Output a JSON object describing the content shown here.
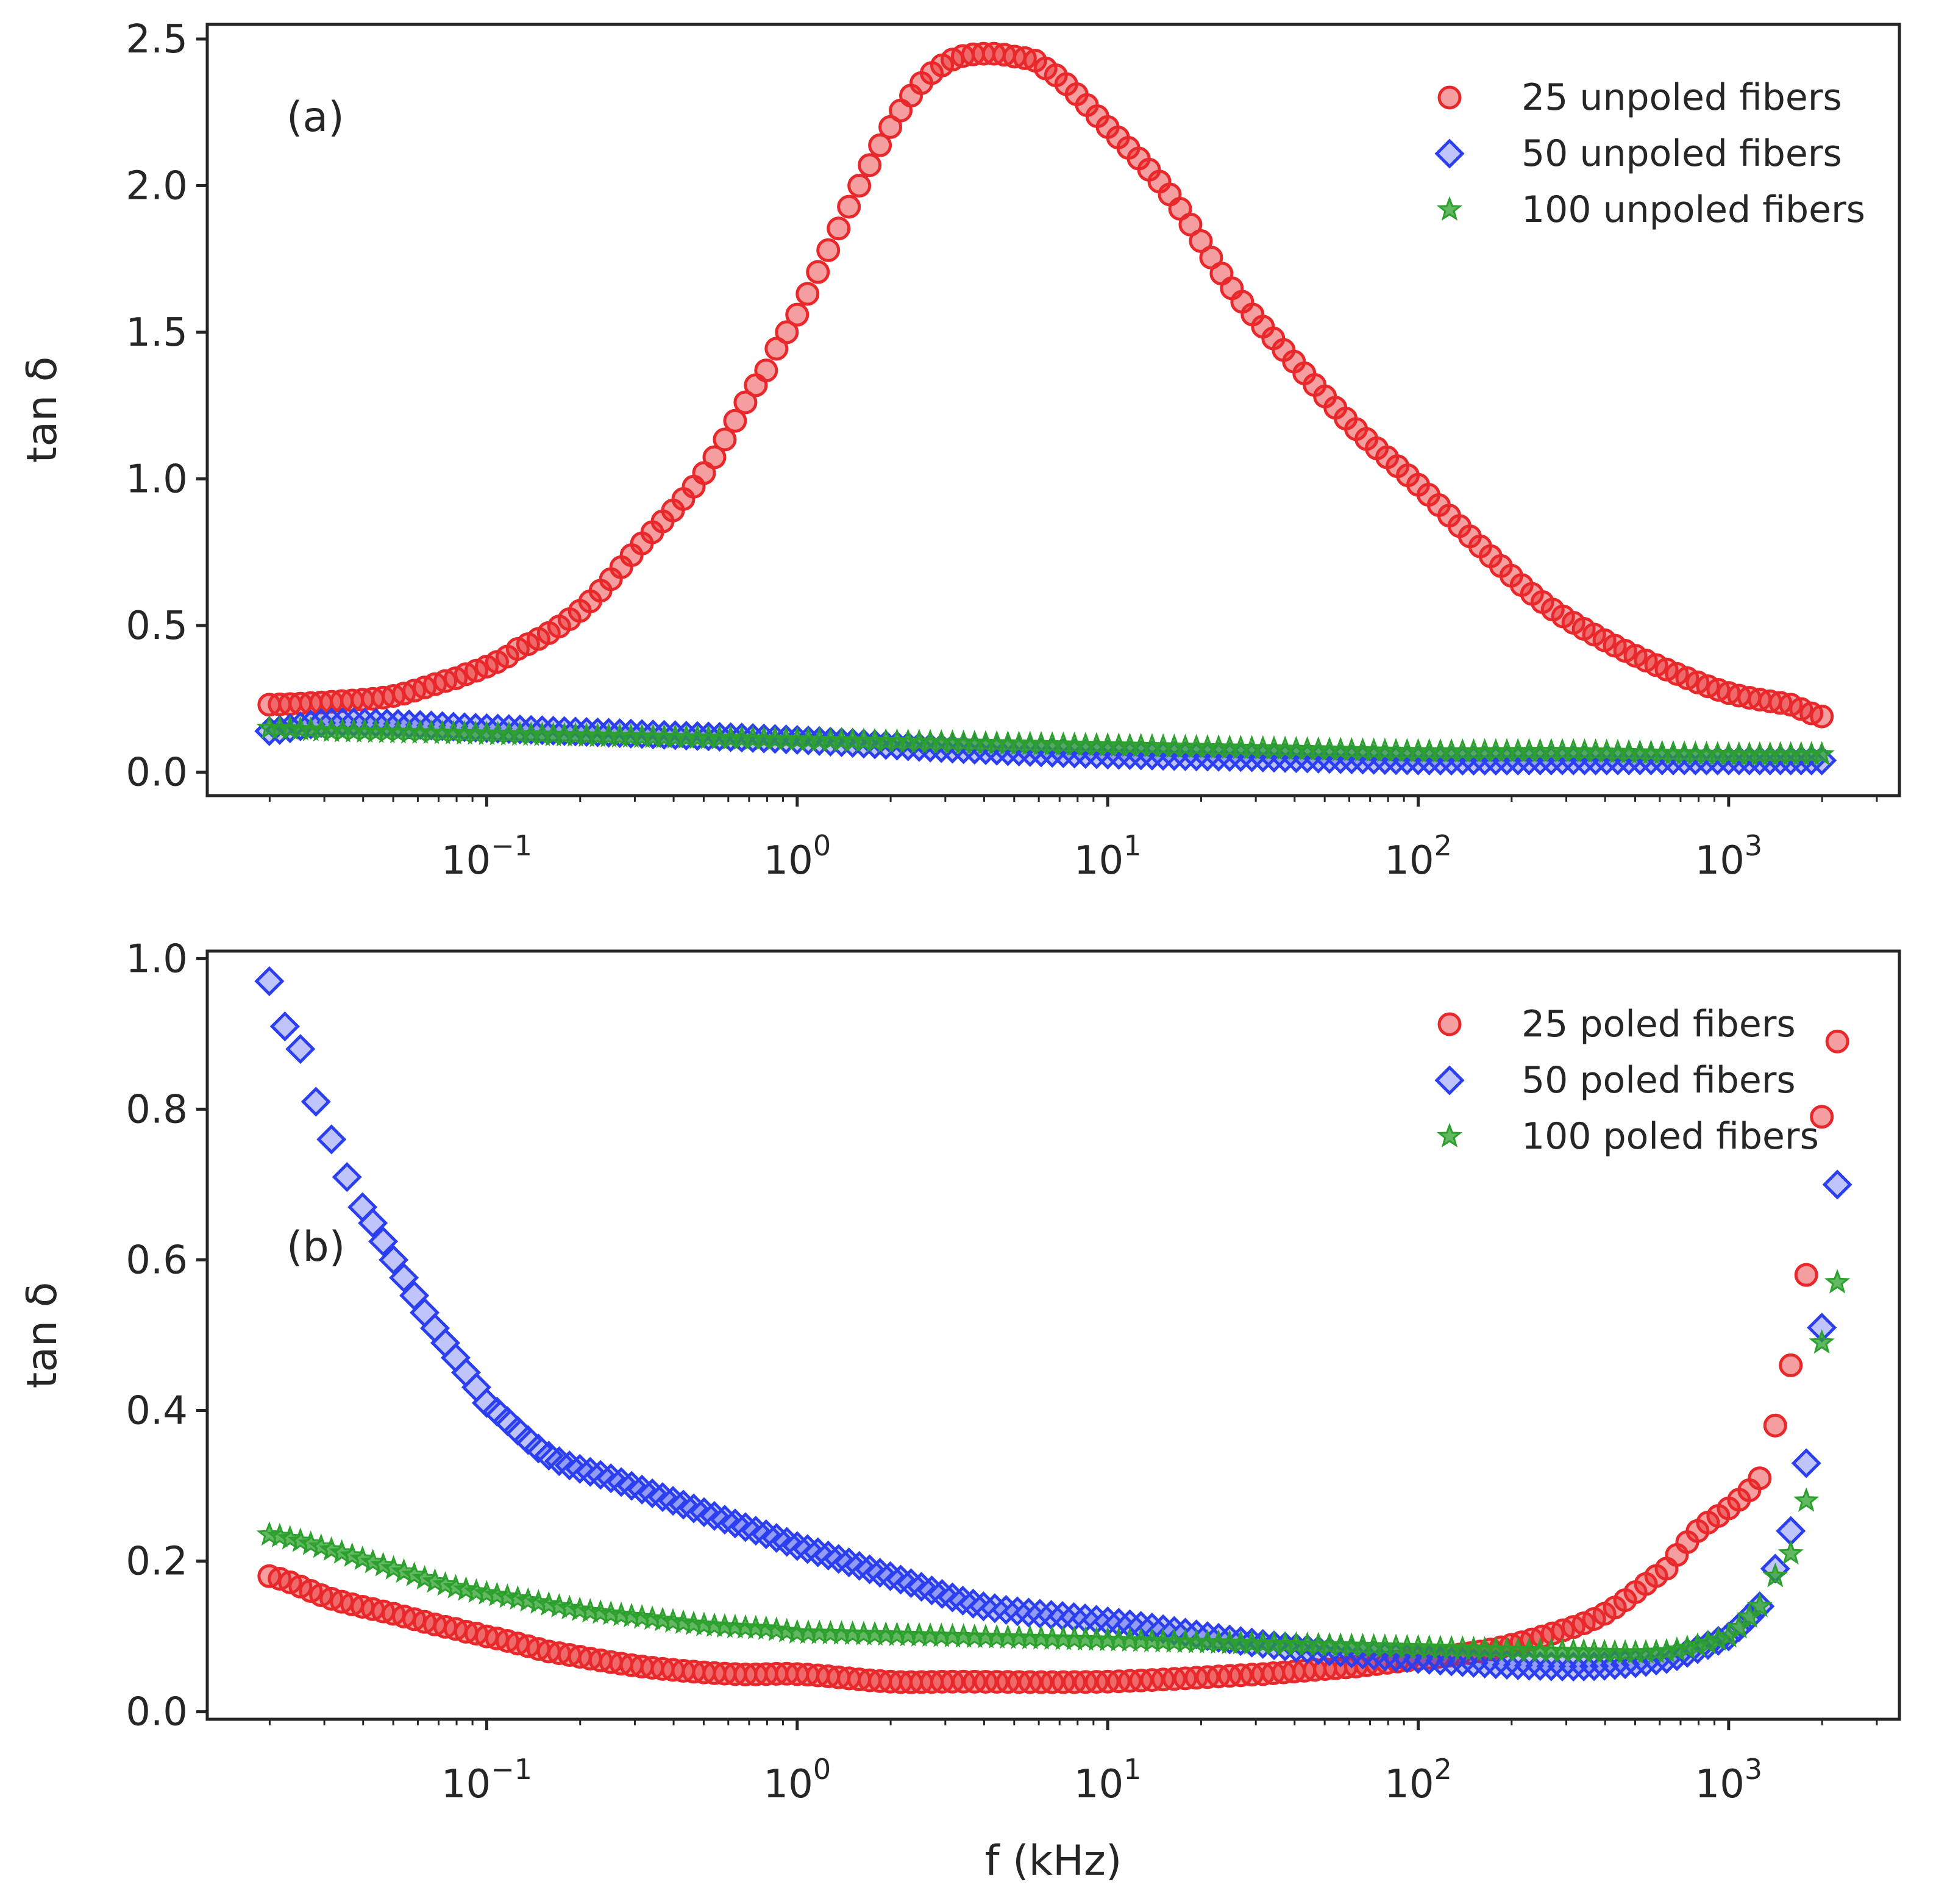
{
  "chart_data": [
    {
      "id": "a",
      "type": "scatter",
      "x_scale": "log",
      "panel_label": "(a)",
      "ylabel": "tan δ",
      "xlabel": "",
      "ylim": [
        -0.08,
        2.55
      ],
      "xlim_log10": [
        -1.9,
        3.55
      ],
      "y_ticks": [
        0.0,
        0.5,
        1.0,
        1.5,
        2.0,
        2.5
      ],
      "y_tick_labels": [
        "0.0",
        "0.5",
        "1.0",
        "1.5",
        "2.0",
        "2.5"
      ],
      "x_tick_exps": [
        -1,
        0,
        1,
        2,
        3
      ],
      "x_tick_labels": [
        "−1",
        "0",
        "1",
        "2",
        "3"
      ],
      "x_tick_base": "10",
      "legend_position": "top-right",
      "grid": false,
      "series": [
        {
          "name": "25 unpoled fibers",
          "marker": "circle",
          "color": "#e8282b",
          "log10_f": [
            -1.7,
            -1.5,
            -1.3,
            -1.1,
            -1.0,
            -0.9,
            -0.7,
            -0.5,
            -0.3,
            -0.1,
            0.0,
            0.1,
            0.2,
            0.3,
            0.4,
            0.5,
            0.6,
            0.7,
            0.8,
            1.0,
            1.2,
            1.4,
            1.6,
            1.8,
            2.0,
            2.2,
            2.4,
            2.6,
            2.8,
            3.0,
            3.2,
            3.3
          ],
          "values": [
            0.23,
            0.24,
            0.26,
            0.32,
            0.36,
            0.42,
            0.55,
            0.78,
            1.02,
            1.37,
            1.56,
            1.78,
            2.0,
            2.2,
            2.35,
            2.43,
            2.45,
            2.44,
            2.4,
            2.2,
            1.97,
            1.65,
            1.4,
            1.17,
            0.98,
            0.77,
            0.58,
            0.45,
            0.35,
            0.27,
            0.23,
            0.19
          ]
        },
        {
          "name": "50 unpoled fibers",
          "marker": "diamond",
          "color": "#2b3ff0",
          "log10_f": [
            -1.7,
            -1.5,
            -1.0,
            -0.5,
            0.0,
            0.5,
            1.0,
            1.5,
            2.0,
            2.5,
            3.0,
            3.3
          ],
          "values": [
            0.14,
            0.17,
            0.15,
            0.13,
            0.11,
            0.08,
            0.06,
            0.05,
            0.04,
            0.04,
            0.04,
            0.04
          ]
        },
        {
          "name": "100 unpoled fibers",
          "marker": "star",
          "color": "#2ca02c",
          "log10_f": [
            -1.7,
            -1.5,
            -1.0,
            -0.5,
            0.0,
            0.5,
            1.0,
            1.5,
            2.0,
            2.5,
            3.0,
            3.3
          ],
          "values": [
            0.15,
            0.14,
            0.13,
            0.12,
            0.11,
            0.1,
            0.09,
            0.08,
            0.07,
            0.07,
            0.06,
            0.06
          ]
        }
      ]
    },
    {
      "id": "b",
      "type": "scatter",
      "x_scale": "log",
      "panel_label": "(b)",
      "ylabel": "tan δ",
      "xlabel": "f (kHz)",
      "ylim": [
        -0.01,
        1.01
      ],
      "xlim_log10": [
        -1.9,
        3.55
      ],
      "y_ticks": [
        0.0,
        0.2,
        0.4,
        0.6,
        0.8,
        1.0
      ],
      "y_tick_labels": [
        "0.0",
        "0.2",
        "0.4",
        "0.6",
        "0.8",
        "1.0"
      ],
      "x_tick_exps": [
        -1,
        0,
        1,
        2,
        3
      ],
      "x_tick_labels": [
        "−1",
        "0",
        "1",
        "2",
        "3"
      ],
      "x_tick_base": "10",
      "legend_position": "top-right",
      "grid": false,
      "series": [
        {
          "name": "25 poled fibers",
          "marker": "circle",
          "color": "#e8282b",
          "log10_f": [
            -1.7,
            -1.5,
            -1.3,
            -1.1,
            -1.0,
            -0.8,
            -0.5,
            -0.2,
            0.0,
            0.3,
            0.5,
            1.0,
            1.5,
            1.8,
            2.0,
            2.2,
            2.4,
            2.6,
            2.8,
            2.9,
            3.0,
            3.1,
            3.15,
            3.2,
            3.25,
            3.3,
            3.35
          ],
          "values": [
            0.18,
            0.15,
            0.13,
            0.11,
            0.1,
            0.08,
            0.06,
            0.05,
            0.05,
            0.04,
            0.04,
            0.04,
            0.05,
            0.06,
            0.07,
            0.08,
            0.1,
            0.13,
            0.19,
            0.24,
            0.27,
            0.31,
            0.38,
            0.46,
            0.58,
            0.79,
            0.89
          ]
        },
        {
          "name": "50 poled fibers",
          "marker": "diamond",
          "color": "#2b3ff0",
          "log10_f": [
            -1.7,
            -1.65,
            -1.6,
            -1.55,
            -1.5,
            -1.45,
            -1.4,
            -1.3,
            -1.2,
            -1.1,
            -1.0,
            -0.8,
            -0.6,
            -0.4,
            -0.2,
            0.0,
            0.3,
            0.6,
            1.0,
            1.5,
            2.0,
            2.5,
            2.8,
            3.0,
            3.1,
            3.15,
            3.2,
            3.25,
            3.3,
            3.35
          ],
          "values": [
            0.97,
            0.91,
            0.88,
            0.81,
            0.76,
            0.71,
            0.67,
            0.6,
            0.53,
            0.47,
            0.41,
            0.34,
            0.31,
            0.28,
            0.25,
            0.22,
            0.18,
            0.14,
            0.12,
            0.09,
            0.07,
            0.06,
            0.07,
            0.1,
            0.14,
            0.19,
            0.24,
            0.33,
            0.51,
            0.7
          ]
        },
        {
          "name": "100 poled fibers",
          "marker": "star",
          "color": "#2ca02c",
          "log10_f": [
            -1.7,
            -1.5,
            -1.3,
            -1.1,
            -0.9,
            -0.7,
            -0.5,
            -0.3,
            -0.1,
            0.0,
            0.5,
            1.0,
            1.5,
            2.0,
            2.5,
            2.8,
            3.0,
            3.1,
            3.15,
            3.2,
            3.25,
            3.3,
            3.35
          ],
          "values": [
            0.235,
            0.215,
            0.19,
            0.165,
            0.15,
            0.135,
            0.125,
            0.115,
            0.11,
            0.105,
            0.1,
            0.095,
            0.09,
            0.085,
            0.08,
            0.08,
            0.1,
            0.14,
            0.18,
            0.21,
            0.28,
            0.49,
            0.57
          ]
        }
      ]
    }
  ]
}
